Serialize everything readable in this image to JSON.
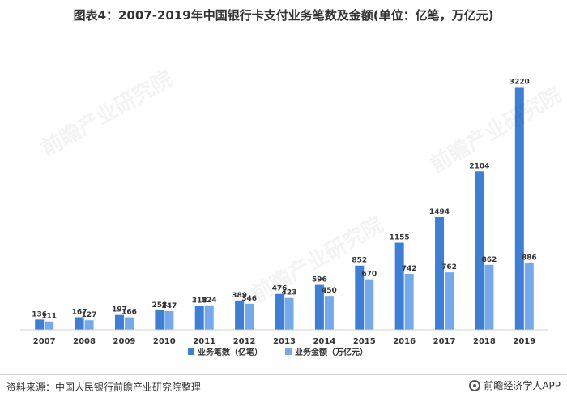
{
  "title": "图表4：2007-2019年中国银行卡支付业务笔数及金额(单位：亿笔，万亿元)",
  "source": "资料来源：中国人民银行前瞻产业研究院整理",
  "brand": "前瞻经济学人APP",
  "watermark": "前瞻产业研究院",
  "colors": {
    "series1": "#3d7fd6",
    "series2": "#74a9ec"
  },
  "chart_data": {
    "type": "bar",
    "title": "图表4：2007-2019年中国银行卡支付业务笔数及金额(单位：亿笔，万亿元)",
    "categories": [
      "2007",
      "2008",
      "2009",
      "2010",
      "2011",
      "2012",
      "2013",
      "2014",
      "2015",
      "2016",
      "2017",
      "2018",
      "2019"
    ],
    "series": [
      {
        "name": "业务笔数（亿笔）",
        "values": [
          136,
          167,
          197,
          258,
          318,
          389,
          476,
          596,
          852,
          1155,
          1494,
          2104,
          3220
        ]
      },
      {
        "name": "业务金额（万亿元）",
        "values": [
          111,
          127,
          166,
          247,
          324,
          346,
          423,
          450,
          670,
          742,
          762,
          862,
          886
        ]
      }
    ],
    "ylim": [
      0,
      3300
    ],
    "grid": false,
    "legend": "bottom-center"
  }
}
